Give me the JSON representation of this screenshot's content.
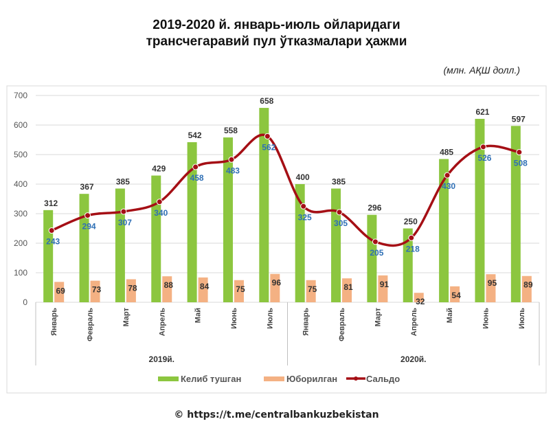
{
  "chart_data": {
    "type": "bar",
    "title": [
      "2019-2020 й. январь-июль ойларидаги",
      "трансчегаравий пул ўтказмалари ҳажми"
    ],
    "unit": "(млн. АҚШ долл.)",
    "groups": [
      {
        "label": "2019й.",
        "categories": [
          "Январь",
          "Февраль",
          "Март",
          "Апрель",
          "Май",
          "Июнь",
          "Июль"
        ]
      },
      {
        "label": "2020й.",
        "categories": [
          "Январь",
          "Февраль",
          "Март",
          "Апрель",
          "Май",
          "Июнь",
          "Июль"
        ]
      }
    ],
    "series": [
      {
        "name": "Келиб тушган",
        "type": "bar",
        "color": "#8cc63f",
        "values": [
          312,
          367,
          385,
          429,
          542,
          558,
          658,
          400,
          385,
          296,
          250,
          485,
          621,
          597
        ]
      },
      {
        "name": "Юборилган",
        "type": "bar",
        "color": "#f4b183",
        "values": [
          69,
          73,
          78,
          88,
          84,
          75,
          96,
          75,
          81,
          91,
          32,
          54,
          95,
          89
        ]
      },
      {
        "name": "Сальдо",
        "type": "line",
        "color": "#a50f15",
        "label_color": "#2e6fb5",
        "values": [
          243,
          294,
          307,
          340,
          458,
          483,
          562,
          325,
          305,
          205,
          218,
          430,
          526,
          508
        ]
      }
    ],
    "ylim": [
      0,
      700
    ],
    "yticks": [
      0,
      100,
      200,
      300,
      400,
      500,
      600,
      700
    ],
    "grid": true,
    "legend": "bottom"
  },
  "footer": "© https://t.me/centralbankuzbekistan"
}
